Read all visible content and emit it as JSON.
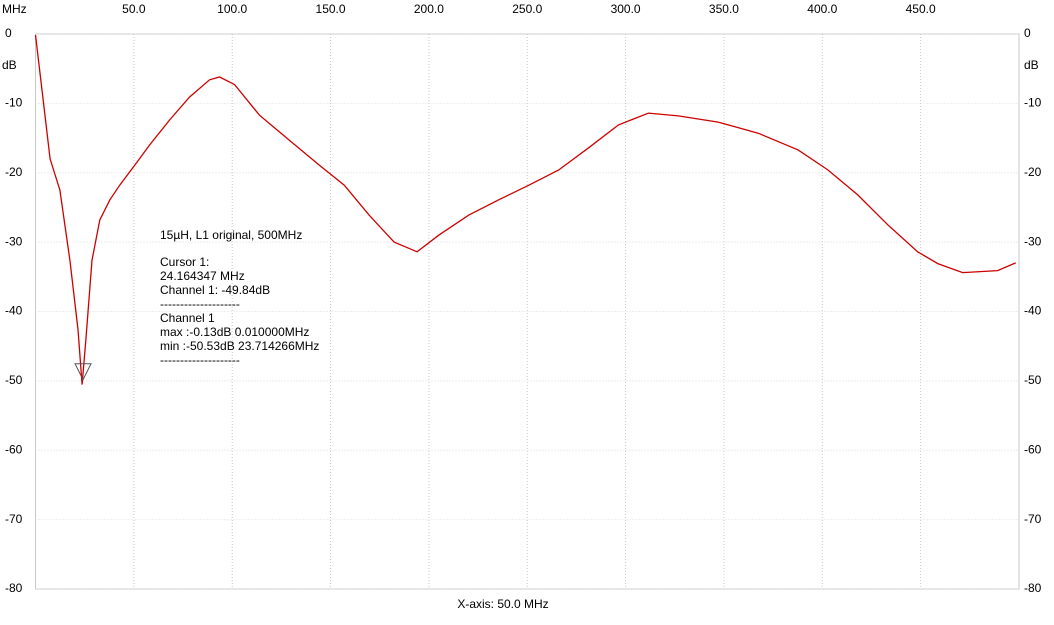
{
  "chart_data": {
    "type": "line",
    "x_unit": "MHz",
    "y_unit": "dB",
    "xlabel": "X-axis: 50.0 MHz",
    "xlim": [
      0,
      500
    ],
    "ylim": [
      -80,
      0
    ],
    "xticks": [
      {
        "value": 50,
        "label": "50.0"
      },
      {
        "value": 100,
        "label": "100.0"
      },
      {
        "value": 150,
        "label": "150.0"
      },
      {
        "value": 200,
        "label": "200.0"
      },
      {
        "value": 250,
        "label": "250.0"
      },
      {
        "value": 300,
        "label": "300.0"
      },
      {
        "value": 350,
        "label": "350.0"
      },
      {
        "value": 400,
        "label": "400.0"
      },
      {
        "value": 450,
        "label": "450.0"
      }
    ],
    "yticks": [
      0,
      -10,
      -20,
      -30,
      -40,
      -50,
      -60,
      -70,
      -80
    ],
    "grid": true,
    "x": [
      0.01,
      7.4,
      12.4,
      17.5,
      21.6,
      23.71,
      25.6,
      28.7,
      32.7,
      37.8,
      42.8,
      50.5,
      58,
      68.2,
      78.3,
      88.5,
      93.6,
      101.2,
      113.9,
      129,
      144.3,
      157,
      169.6,
      182.3,
      194,
      205,
      220.3,
      235.5,
      250.8,
      266,
      281.2,
      296.4,
      311.6,
      326.8,
      347.1,
      367.4,
      387.7,
      402.9,
      418.1,
      433.3,
      448.5,
      458.7,
      471.4,
      489.1,
      498.3
    ],
    "series": [
      {
        "name": "Channel 1",
        "color": "#cc0000",
        "values": [
          -0.13,
          -18,
          -22.5,
          -32.6,
          -42.6,
          -50.53,
          -44,
          -32.6,
          -26.8,
          -23.9,
          -21.8,
          -18.9,
          -16,
          -12.4,
          -9.1,
          -6.6,
          -6.2,
          -7.3,
          -11.7,
          -15.3,
          -18.9,
          -21.8,
          -26.1,
          -30,
          -31.4,
          -29,
          -26.1,
          -23.9,
          -21.8,
          -19.6,
          -16.4,
          -13.1,
          -11.4,
          -11.8,
          -12.7,
          -14.3,
          -16.7,
          -19.6,
          -23.2,
          -27.5,
          -31.4,
          -33.1,
          -34.4,
          -34.1,
          -33
        ]
      }
    ],
    "cursor": {
      "x": 24.164347,
      "y": -49.84
    },
    "annotations": [
      [
        "15µH, L1 original, 500MHz"
      ],
      [
        "Cursor 1:",
        "24.164347 MHz",
        "Channel 1: -49.84dB",
        "--------------------",
        "Channel 1",
        "max :-0.13dB 0.010000MHz",
        "min :-50.53dB 23.714266MHz",
        "--------------------"
      ]
    ]
  }
}
